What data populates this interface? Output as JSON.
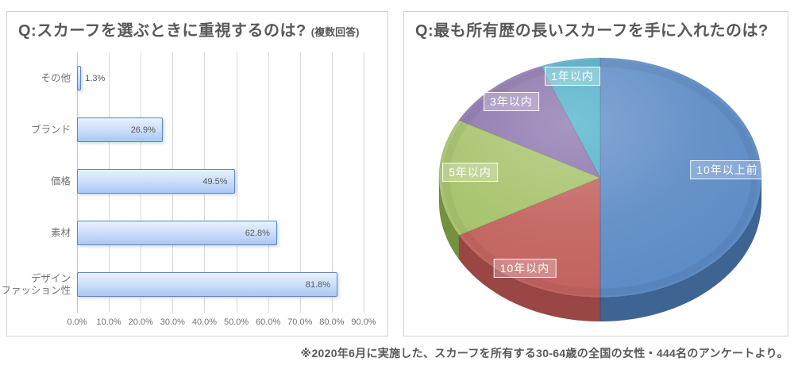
{
  "chart_data": [
    {
      "type": "bar",
      "orientation": "horizontal",
      "title": "Q:スカーフを選ぶときに重視するのは?",
      "title_note": "(複数回答)",
      "categories": [
        "その他",
        "ブランド",
        "価格",
        "素材",
        "デザイン\nファッション性"
      ],
      "values": [
        1.3,
        26.9,
        49.5,
        62.8,
        81.8
      ],
      "value_labels": [
        "1.3%",
        "26.9%",
        "49.5%",
        "62.8%",
        "81.8%"
      ],
      "x_ticks": [
        "0.0%",
        "10.0%",
        "20.0%",
        "30.0%",
        "40.0%",
        "50.0%",
        "60.0%",
        "70.0%",
        "80.0%",
        "90.0%"
      ],
      "xlim": [
        0,
        90
      ],
      "grid": "vertical-major-10pct",
      "bar_fill_top": "#e9f2fe",
      "bar_fill_bottom": "#a9c8f3",
      "bar_border": "#5d86c5",
      "label_color": "#595959"
    },
    {
      "type": "pie",
      "style": "3d",
      "title": "Q:最も所有歴の長いスカーフを手に入れたのは?",
      "start_angle": "12-oclock, clockwise",
      "values_note": "estimated from slice angles; no numeric labels shown in image",
      "slices": [
        {
          "label": "10年以上前",
          "value": 50,
          "color": "#5b8ac5",
          "side_color": "#3d6493"
        },
        {
          "label": "10年以内",
          "value": 17,
          "color": "#c2605c",
          "side_color": "#9a4644"
        },
        {
          "label": "5年以内",
          "value": 16,
          "color": "#a4c167",
          "side_color": "#74913d"
        },
        {
          "label": "3年以内",
          "value": 11,
          "color": "#8871ab",
          "side_color": "#62497f"
        },
        {
          "label": "1年以内",
          "value": 6,
          "color": "#4bafc9",
          "side_color": "#2f879e"
        }
      ],
      "label_text_color": "#ffffff"
    }
  ],
  "footer": {
    "note": "※2020年6月に実施した、スカーフを所有する30-64歳の全国の女性・444名のアンケートより。"
  }
}
